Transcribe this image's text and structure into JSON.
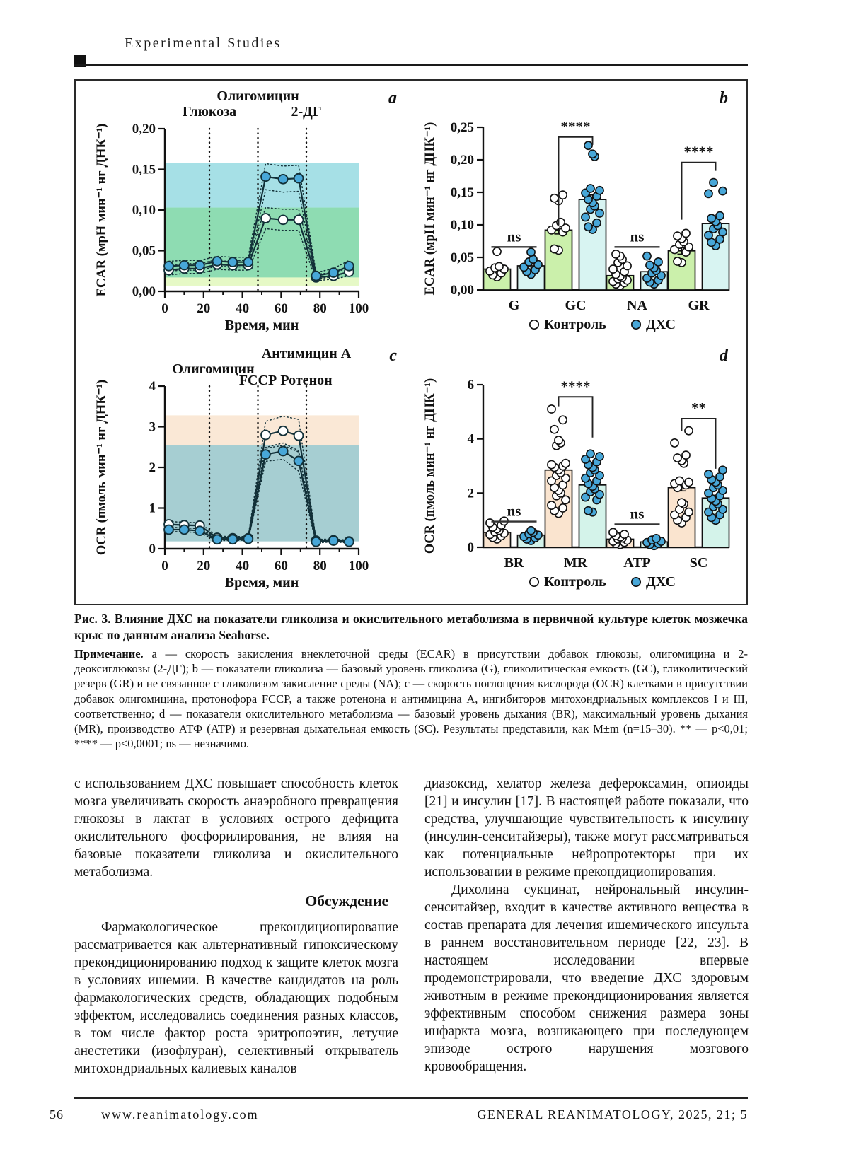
{
  "header": {
    "section_label": "Experimental Studies"
  },
  "figure": {
    "caption": "Рис. 3.  Влияние ДХС на показатели гликолиза и окислительного метаболизма в первичной культуре клеток мозжечка крыс по данным анализа Seahorse.",
    "note_label": "Примечание.",
    "note_text": "a — скорость закисления внеклеточной среды (ECAR) в присутствии добавок глюкозы, олигомицина и 2-деоксиглюкозы (2-ДГ); b — показатели гликолиза — базовый уровень гликолиза (G), гликолитическая емкость (GC), гликолитический резерв (GR) и не связанное с гликолизом закисление среды (NA); c — скорость поглощения кислорода (OCR) клетками в присутствии добавок олигомицина, протонофора FCCP, а также ротенона и антимицина А, ингибиторов митохондриальных комплексов I и III, соответственно; d — показатели окислительного метаболизма — базовый уровень дыхания (BR), максимальный уровень дыхания (MR), производство АТФ (ATP) и резервная дыхательная емкость (SC). Результаты представили, как M±m (n=15–30). ** — p<0,01; **** — p<0,0001; ns — незначимо."
  },
  "colors": {
    "line_stroke": "#123038",
    "blue_marker": "#48a7d8",
    "axis": "#111111"
  },
  "chart_data": [
    {
      "panel": "a",
      "type": "line",
      "ylabel": "ECAR (мрН мин⁻¹ нг ДНК⁻¹)",
      "xlabel": "Время, мин",
      "xlim": [
        0,
        100
      ],
      "ylim": [
        0,
        0.2
      ],
      "xticks": [
        0,
        20,
        40,
        60,
        80,
        100
      ],
      "xminor": [
        10,
        30,
        50,
        70,
        90
      ],
      "yticks": [
        0,
        0.05,
        0.1,
        0.15,
        0.2
      ],
      "ytick_labels": [
        "0,00",
        "0,05",
        "0,10",
        "0,15",
        "0,20"
      ],
      "vlines": [
        23,
        48,
        73
      ],
      "labels": [
        {
          "text": "Олигомицин",
          "x": 48,
          "row": 0
        },
        {
          "text": "Глюкоза",
          "x": 23,
          "row": 1
        },
        {
          "text": "2-ДГ",
          "x": 73,
          "row": 1
        }
      ],
      "bands": [
        {
          "from": 0.103,
          "to": 0.158,
          "color": "#a6e0e6"
        },
        {
          "from": 0.017,
          "to": 0.103,
          "color": "#8edcb2"
        },
        {
          "from": 0.007,
          "to": 0.017,
          "color": "#e6f9c6"
        }
      ],
      "series": [
        {
          "name": "Контроль",
          "marker": "open",
          "x": [
            2,
            10,
            18,
            27,
            35,
            43,
            52,
            61,
            69,
            78,
            87,
            95
          ],
          "y": [
            0.026,
            0.028,
            0.028,
            0.033,
            0.032,
            0.032,
            0.09,
            0.088,
            0.088,
            0.017,
            0.019,
            0.024
          ],
          "err": [
            0.006,
            0.006,
            0.006,
            0.006,
            0.006,
            0.006,
            0.013,
            0.013,
            0.013,
            0.004,
            0.004,
            0.005
          ]
        },
        {
          "name": "ДХС",
          "marker": "blue",
          "x": [
            2,
            10,
            18,
            27,
            35,
            43,
            52,
            61,
            69,
            78,
            87,
            95
          ],
          "y": [
            0.031,
            0.032,
            0.032,
            0.037,
            0.036,
            0.036,
            0.141,
            0.138,
            0.139,
            0.019,
            0.023,
            0.031
          ],
          "err": [
            0.006,
            0.006,
            0.006,
            0.006,
            0.006,
            0.006,
            0.016,
            0.016,
            0.016,
            0.004,
            0.005,
            0.007
          ]
        }
      ]
    },
    {
      "panel": "b",
      "type": "bar",
      "ylabel": "ECAR (мрН мин⁻¹ нг ДНК⁻¹)",
      "ylim": [
        0,
        0.25
      ],
      "yticks": [
        0,
        0.05,
        0.1,
        0.15,
        0.2,
        0.25
      ],
      "ytick_labels": [
        "0,00",
        "0,05",
        "0,10",
        "0,15",
        "0,20",
        "0,25"
      ],
      "categories": [
        "G",
        "GC",
        "NA",
        "GR"
      ],
      "series": [
        {
          "name": "Контроль",
          "marker": "open",
          "color": "#cbf0ab",
          "values": [
            0.032,
            0.092,
            0.022,
            0.06
          ],
          "err": [
            0.004,
            0.006,
            0.003,
            0.005
          ],
          "points": [
            [
              0.02,
              0.023,
              0.026,
              0.029,
              0.032,
              0.034,
              0.036,
              0.059
            ],
            [
              0.061,
              0.063,
              0.089,
              0.092,
              0.095,
              0.099,
              0.104,
              0.137,
              0.141,
              0.146
            ],
            [
              0.007,
              0.009,
              0.011,
              0.013,
              0.015,
              0.017,
              0.019,
              0.021,
              0.024,
              0.028,
              0.032,
              0.037,
              0.042,
              0.047,
              0.052,
              0.055
            ],
            [
              0.042,
              0.044,
              0.058,
              0.062,
              0.066,
              0.07,
              0.074,
              0.079,
              0.083,
              0.087
            ]
          ]
        },
        {
          "name": "ДХС",
          "marker": "blue",
          "color": "#d8f4f2",
          "values": [
            0.037,
            0.139,
            0.028,
            0.102
          ],
          "err": [
            0.005,
            0.007,
            0.004,
            0.008
          ],
          "points": [
            [
              0.024,
              0.028,
              0.031,
              0.035,
              0.039,
              0.043,
              0.047,
              0.058
            ],
            [
              0.093,
              0.097,
              0.103,
              0.112,
              0.118,
              0.124,
              0.129,
              0.134,
              0.139,
              0.144,
              0.149,
              0.153,
              0.156,
              0.205,
              0.209,
              0.222
            ],
            [
              0.009,
              0.012,
              0.015,
              0.018,
              0.022,
              0.026,
              0.03,
              0.034,
              0.038,
              0.043,
              0.052
            ],
            [
              0.068,
              0.073,
              0.078,
              0.084,
              0.089,
              0.094,
              0.099,
              0.105,
              0.11,
              0.114,
              0.148,
              0.152,
              0.165
            ]
          ]
        }
      ],
      "significance": [
        {
          "label": "ns",
          "kind": "line",
          "y": 0.066
        },
        {
          "label": "****",
          "kind": "bracket",
          "y": 0.235,
          "left_down": 0.135,
          "right_down": 0.012
        },
        {
          "label": "ns",
          "kind": "line",
          "y": 0.066
        },
        {
          "label": "****",
          "kind": "bracket",
          "y": 0.196,
          "left_down": 0.088,
          "right_down": 0.013
        }
      ],
      "legend": [
        {
          "label": "Контроль",
          "marker": "open"
        },
        {
          "label": "ДХС",
          "marker": "blue"
        }
      ]
    },
    {
      "panel": "c",
      "type": "line",
      "ylabel": "OCR (пмоль мин⁻¹ нг ДНК⁻¹)",
      "xlabel": "Время, мин",
      "xlim": [
        0,
        100
      ],
      "ylim": [
        0,
        4
      ],
      "xticks": [
        0,
        20,
        40,
        60,
        80,
        100
      ],
      "xminor": [
        10,
        30,
        50,
        70,
        90
      ],
      "yticks": [
        0,
        1,
        2,
        3,
        4
      ],
      "ytick_labels": [
        "0",
        "1",
        "2",
        "3",
        "4"
      ],
      "vlines": [
        23,
        48,
        73
      ],
      "labels": [
        {
          "text": "Антимицин А",
          "x": 73,
          "row": 0
        },
        {
          "text": "Олигомицин",
          "x": 25,
          "row": 1
        },
        {
          "text": "FCCP",
          "x": 48,
          "row": 2
        },
        {
          "text": "Ротенон",
          "x": 73,
          "row": 2
        }
      ],
      "bands": [
        {
          "from": 2.55,
          "to": 3.28,
          "color": "#fae8d6"
        },
        {
          "from": 0.18,
          "to": 2.55,
          "color": "#a6ced2"
        }
      ],
      "series": [
        {
          "name": "Контроль",
          "marker": "open",
          "x": [
            2,
            10,
            18,
            27,
            35,
            43,
            52,
            61,
            69,
            78,
            87,
            95
          ],
          "y": [
            0.6,
            0.58,
            0.57,
            0.27,
            0.26,
            0.26,
            2.8,
            2.9,
            2.78,
            0.2,
            0.21,
            0.18
          ],
          "err": [
            0.07,
            0.07,
            0.07,
            0.04,
            0.04,
            0.04,
            0.33,
            0.36,
            0.4,
            0.03,
            0.03,
            0.03
          ]
        },
        {
          "name": "ДХС",
          "marker": "blue",
          "x": [
            2,
            10,
            18,
            27,
            35,
            43,
            52,
            61,
            69,
            78,
            87,
            95
          ],
          "y": [
            0.47,
            0.47,
            0.44,
            0.23,
            0.23,
            0.24,
            2.32,
            2.4,
            2.16,
            0.17,
            0.2,
            0.17
          ],
          "err": [
            0.05,
            0.05,
            0.05,
            0.03,
            0.03,
            0.03,
            0.17,
            0.2,
            0.25,
            0.03,
            0.03,
            0.03
          ]
        }
      ]
    },
    {
      "panel": "d",
      "type": "bar",
      "ylabel": "OCR (пмоль мин⁻¹ нг ДНК⁻¹)",
      "ylim": [
        0,
        6
      ],
      "yticks": [
        0,
        2,
        4,
        6
      ],
      "ytick_labels": [
        "0",
        "2",
        "4",
        "6"
      ],
      "categories": [
        "BR",
        "MR",
        "ATP",
        "SC"
      ],
      "series": [
        {
          "name": "Контроль",
          "marker": "open",
          "color": "#fae4cf",
          "values": [
            0.55,
            2.85,
            0.3,
            2.2
          ],
          "err": [
            0.05,
            0.14,
            0.04,
            0.12
          ],
          "points": [
            [
              0.3,
              0.36,
              0.42,
              0.47,
              0.52,
              0.57,
              0.62,
              0.68,
              0.74,
              0.82,
              0.9,
              0.97
            ],
            [
              1.25,
              1.35,
              1.45,
              1.55,
              1.75,
              1.9,
              2.0,
              2.1,
              2.2,
              2.3,
              2.45,
              2.55,
              2.65,
              2.75,
              2.85,
              2.95,
              3.0,
              3.05,
              3.1,
              3.75,
              3.85,
              3.95,
              4.35,
              4.7,
              5.1
            ],
            [
              0.1,
              0.14,
              0.18,
              0.22,
              0.26,
              0.3,
              0.34,
              0.38,
              0.43,
              0.48,
              0.55
            ],
            [
              0.9,
              1.0,
              1.1,
              1.2,
              1.3,
              1.4,
              1.6,
              1.65,
              2.2,
              2.3,
              2.35,
              2.4,
              2.45,
              3.1,
              3.2,
              3.3,
              3.4,
              3.85,
              4.3
            ]
          ]
        },
        {
          "name": "ДХС",
          "marker": "blue",
          "color": "#d4f3ea",
          "values": [
            0.45,
            2.3,
            0.2,
            1.82
          ],
          "err": [
            0.04,
            0.11,
            0.03,
            0.1
          ],
          "points": [
            [
              0.25,
              0.3,
              0.35,
              0.4,
              0.45,
              0.5,
              0.55,
              0.62
            ],
            [
              1.3,
              1.35,
              1.75,
              1.85,
              1.95,
              2.05,
              2.15,
              2.25,
              2.35,
              2.45,
              2.55,
              2.65,
              2.75,
              2.85,
              2.95,
              3.05,
              3.15,
              3.25,
              3.35,
              3.45
            ],
            [
              0.06,
              0.1,
              0.14,
              0.18,
              0.22,
              0.27,
              0.33
            ],
            [
              1.0,
              1.1,
              1.2,
              1.3,
              1.4,
              1.5,
              1.6,
              1.7,
              1.8,
              1.9,
              2.0,
              2.1,
              2.2,
              2.3,
              2.4,
              2.5,
              2.6,
              2.7,
              2.85
            ]
          ]
        }
      ],
      "significance": [
        {
          "label": "ns",
          "kind": "line",
          "y": 0.95
        },
        {
          "label": "****",
          "kind": "bracket",
          "y": 5.55,
          "left_down": 0.35,
          "right_down": 1.5
        },
        {
          "label": "ns",
          "kind": "line",
          "y": 0.85
        },
        {
          "label": "**",
          "kind": "bracket",
          "y": 4.75,
          "left_down": 0.45,
          "right_down": 1.85
        }
      ],
      "legend": [
        {
          "label": "Контроль",
          "marker": "open"
        },
        {
          "label": "ДХС",
          "marker": "blue"
        }
      ]
    }
  ],
  "body": {
    "left": {
      "p1": "с использованием ДХС повышает способность клеток мозга увеличивать скорость анаэробного превращения глюкозы в лактат в условиях острого дефицита окислительного фосфорилирования, не влияя на базовые показатели гликолиза и окислительного метаболизма.",
      "heading": "Обсуждение",
      "p2": "Фармакологическое прекондиционирование рассматривается как альтернативный гипоксическому прекондиционированию подход к защите клеток мозга в условиях ишемии. В качестве кандидатов на роль фармакологических средств, обладающих подобным эффектом, исследовались соединения разных классов, в том числе фактор роста эритропоэтин, летучие анестетики (изофлуран), селективный открыватель митохондриальных калиевых каналов"
    },
    "right": {
      "p1": "диазоксид, хелатор железа дефероксамин, опиоиды [21] и инсулин [17]. В настоящей работе показали, что средства, улучшающие чувствительность к инсулину (инсулин-сенситайзеры), также могут рассматриваться как потенциальные нейропротекторы при их использовании в режиме прекондиционирования.",
      "p2": "Дихолина сукцинат, нейрональный инсулин-сенситайзер, входит в качестве активного вещества в состав препарата для лечения ишемического инсульта в раннем восстановительном периоде [22, 23]. В настоящем исследовании впервые продемонстрировали, что введение ДХС здоровым животным в режиме прекондиционирования является эффективным способом снижения размера зоны инфаркта мозга, возникающего при последующем эпизоде острого нарушения мозгового кровообращения."
    }
  },
  "footer": {
    "page_number": "56",
    "website": "www.reanimatology.com",
    "journal": "GENERAL REANIMATOLOGY, 2025, 21; 5"
  }
}
